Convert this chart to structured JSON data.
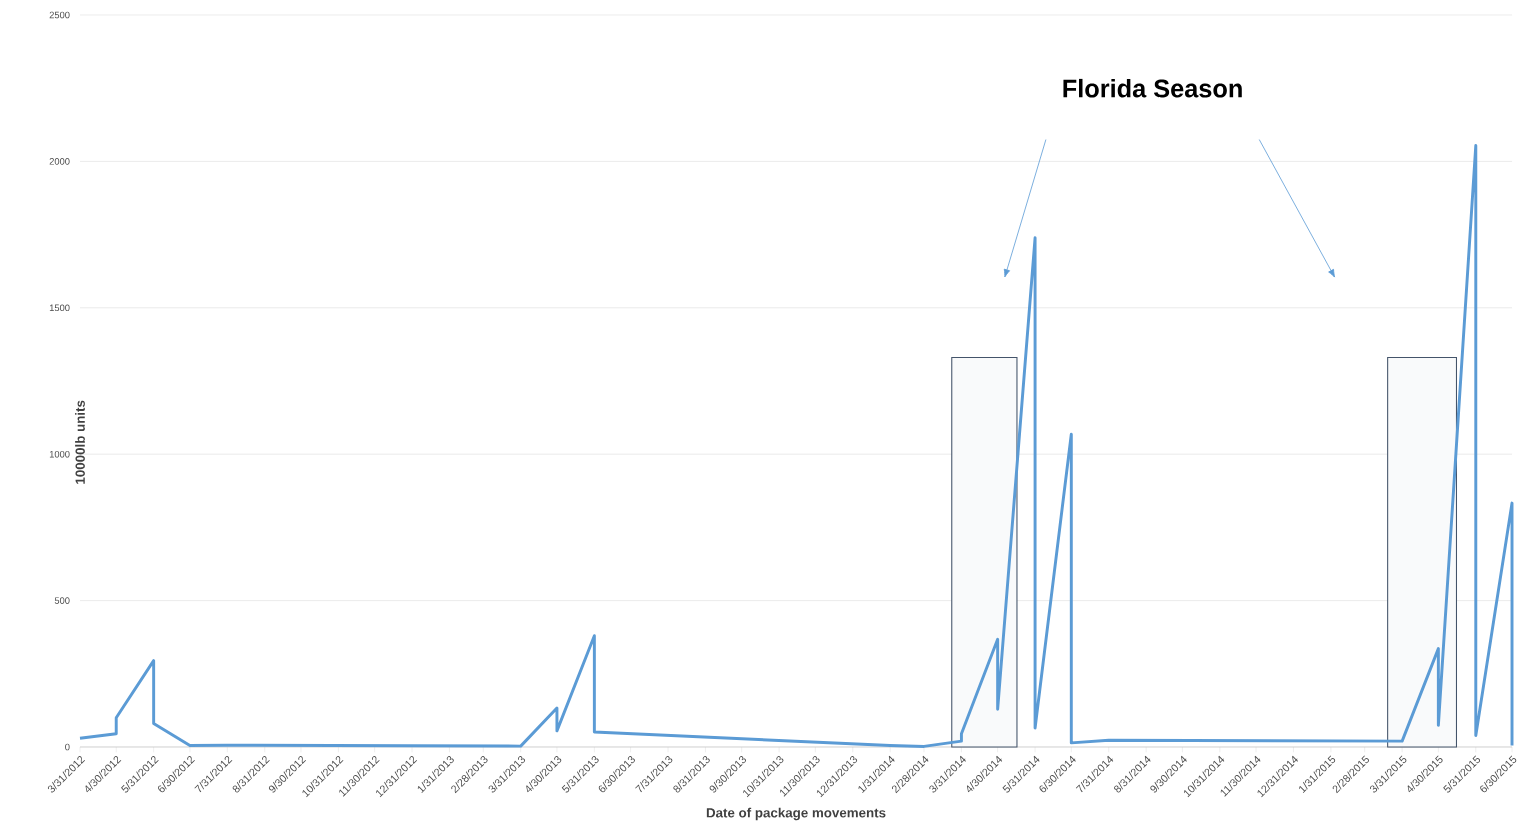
{
  "chart_data": {
    "type": "line",
    "xlabel": "Date of package movements",
    "ylabel": "10000lb units",
    "x": [
      "2012-03-31",
      "2012-04-30",
      "2012-04-30",
      "2012-05-31",
      "2012-05-31",
      "2012-06-30",
      "2012-07-31",
      "2012-12-31",
      "2013-03-31",
      "2013-04-30",
      "2013-04-30",
      "2013-05-31",
      "2013-05-31",
      "2014-01-31",
      "2014-02-28",
      "2014-03-31",
      "2014-03-31",
      "2014-04-30",
      "2014-04-30",
      "2014-05-31",
      "2014-05-31",
      "2014-06-30",
      "2014-06-30",
      "2014-07-31",
      "2015-03-31",
      "2015-04-30",
      "2015-04-30",
      "2015-05-31",
      "2015-05-31",
      "2015-06-30",
      "2015-06-30"
    ],
    "series": [
      {
        "color": "#5b9bd5",
        "values": [
          30,
          45,
          100,
          295,
          80,
          5,
          6,
          4,
          3,
          133,
          55,
          380,
          51,
          5,
          2,
          20,
          45,
          368,
          129,
          1739,
          65,
          1068,
          14,
          23,
          20,
          336,
          74,
          2054,
          39,
          833,
          5
        ]
      }
    ],
    "xlim": [
      "2012-03-31",
      "2015-06-30"
    ],
    "xticks": [
      {
        "value": "2012-03-31",
        "label": "3/31/2012"
      },
      {
        "value": "2012-04-30",
        "label": "4/30/2012"
      },
      {
        "value": "2012-05-31",
        "label": "5/31/2012"
      },
      {
        "value": "2012-06-30",
        "label": "6/30/2012"
      },
      {
        "value": "2012-07-31",
        "label": "7/31/2012"
      },
      {
        "value": "2012-08-31",
        "label": "8/31/2012"
      },
      {
        "value": "2012-09-30",
        "label": "9/30/2012"
      },
      {
        "value": "2012-10-31",
        "label": "10/31/2012"
      },
      {
        "value": "2012-11-30",
        "label": "11/30/2012"
      },
      {
        "value": "2012-12-31",
        "label": "12/31/2012"
      },
      {
        "value": "2013-01-31",
        "label": "1/31/2013"
      },
      {
        "value": "2013-02-28",
        "label": "2/28/2013"
      },
      {
        "value": "2013-03-31",
        "label": "3/31/2013"
      },
      {
        "value": "2013-04-30",
        "label": "4/30/2013"
      },
      {
        "value": "2013-05-31",
        "label": "5/31/2013"
      },
      {
        "value": "2013-06-30",
        "label": "6/30/2013"
      },
      {
        "value": "2013-07-31",
        "label": "7/31/2013"
      },
      {
        "value": "2013-08-31",
        "label": "8/31/2013"
      },
      {
        "value": "2013-09-30",
        "label": "9/30/2013"
      },
      {
        "value": "2013-10-31",
        "label": "10/31/2013"
      },
      {
        "value": "2013-11-30",
        "label": "11/30/2013"
      },
      {
        "value": "2013-12-31",
        "label": "12/31/2013"
      },
      {
        "value": "2014-01-31",
        "label": "1/31/2014"
      },
      {
        "value": "2014-02-28",
        "label": "2/28/2014"
      },
      {
        "value": "2014-03-31",
        "label": "3/31/2014"
      },
      {
        "value": "2014-04-30",
        "label": "4/30/2014"
      },
      {
        "value": "2014-05-31",
        "label": "5/31/2014"
      },
      {
        "value": "2014-06-30",
        "label": "6/30/2014"
      },
      {
        "value": "2014-07-31",
        "label": "7/31/2014"
      },
      {
        "value": "2014-08-31",
        "label": "8/31/2014"
      },
      {
        "value": "2014-09-30",
        "label": "9/30/2014"
      },
      {
        "value": "2014-10-31",
        "label": "10/31/2014"
      },
      {
        "value": "2014-11-30",
        "label": "11/30/2014"
      },
      {
        "value": "2014-12-31",
        "label": "12/31/2014"
      },
      {
        "value": "2015-01-31",
        "label": "1/31/2015"
      },
      {
        "value": "2015-02-28",
        "label": "2/28/2015"
      },
      {
        "value": "2015-03-31",
        "label": "3/31/2015"
      },
      {
        "value": "2015-04-30",
        "label": "4/30/2015"
      },
      {
        "value": "2015-05-31",
        "label": "5/31/2015"
      },
      {
        "value": "2015-06-30",
        "label": "6/30/2015"
      }
    ],
    "ylim": [
      0,
      2500
    ],
    "yticks": [
      0,
      500,
      1000,
      1500,
      2000,
      2500
    ],
    "grid": "y",
    "bands": [
      {
        "axis": "x",
        "from": "2014-03-23",
        "to": "2014-05-16"
      },
      {
        "axis": "x",
        "from": "2015-03-19",
        "to": "2015-05-15"
      }
    ],
    "annotations": [
      "Florida Season"
    ]
  }
}
